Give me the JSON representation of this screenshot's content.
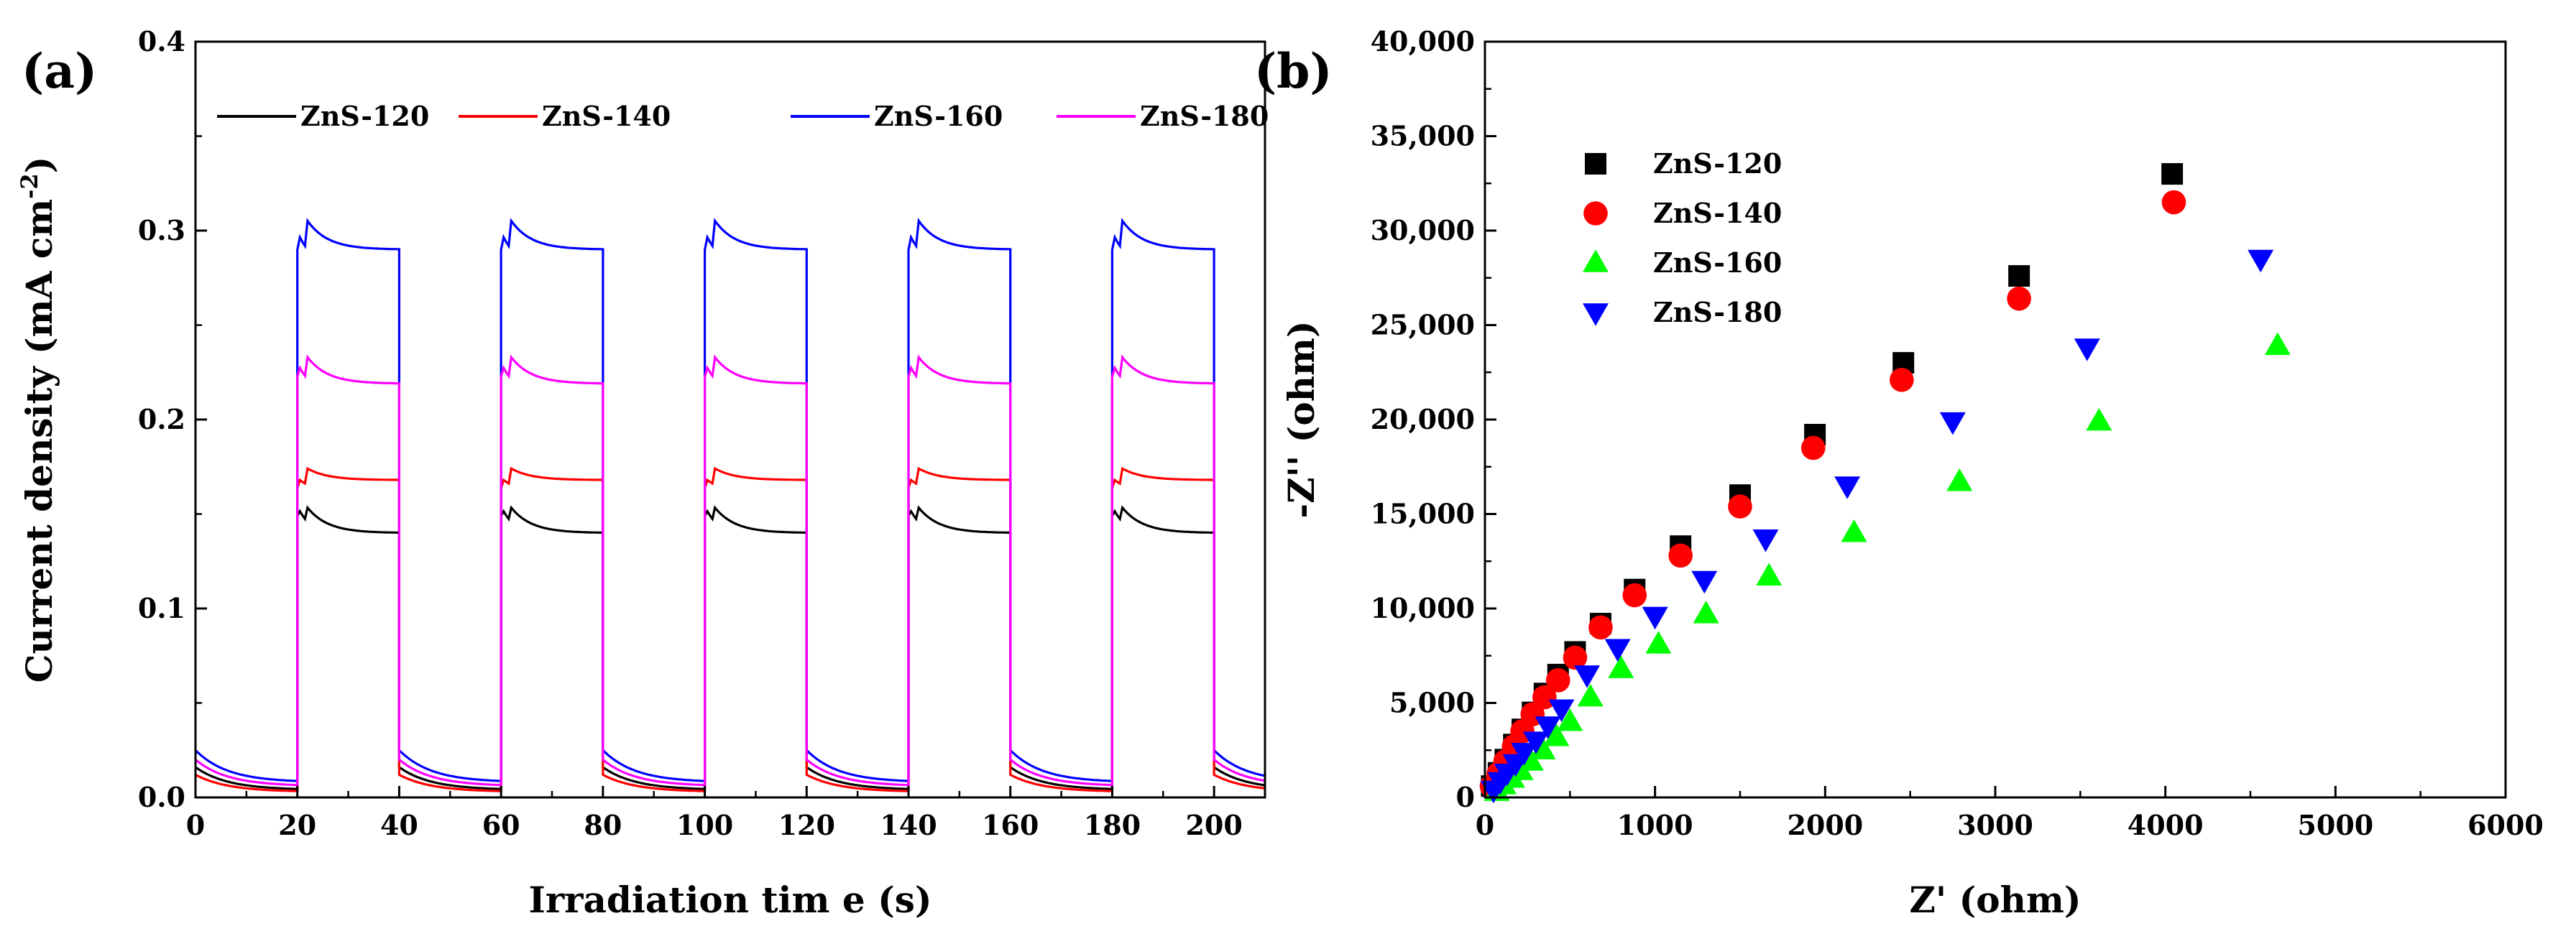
{
  "chart_data": [
    {
      "panel_label": "(a)",
      "type": "line",
      "xlabel": "Irradiation tim e (s)",
      "ylabel": "Current density (mA cm",
      "ylabel_sup": "-2",
      "ylabel_close": ")",
      "xlim": [
        0,
        210
      ],
      "ylim": [
        0,
        0.4
      ],
      "xticks": [
        0,
        20,
        40,
        60,
        80,
        100,
        120,
        140,
        160,
        180,
        200
      ],
      "xtick_labels": [
        "0",
        "20",
        "40",
        "60",
        "80",
        "100",
        "120",
        "140",
        "160",
        "180",
        "200"
      ],
      "yticks": [
        0.0,
        0.1,
        0.2,
        0.3,
        0.4
      ],
      "ytick_labels": [
        "0.0",
        "0.1",
        "0.2",
        "0.3",
        "0.4"
      ],
      "legend_position": "top",
      "light_on_intervals": [
        [
          20,
          40
        ],
        [
          60,
          80
        ],
        [
          100,
          120
        ],
        [
          140,
          160
        ],
        [
          180,
          200
        ]
      ],
      "series": [
        {
          "name": "ZnS-120",
          "color": "#000000",
          "dark_start": 0.016,
          "dark_end": 0.004,
          "on_peak": 0.162,
          "on_plateau": 0.14
        },
        {
          "name": "ZnS-140",
          "color": "#ff0000",
          "dark_start": 0.012,
          "dark_end": 0.003,
          "on_peak": 0.178,
          "on_plateau": 0.168
        },
        {
          "name": "ZnS-160",
          "color": "#0000ff",
          "dark_start": 0.025,
          "dark_end": 0.008,
          "on_peak": 0.315,
          "on_plateau": 0.29
        },
        {
          "name": "ZnS-180",
          "color": "#ff00ff",
          "dark_start": 0.02,
          "dark_end": 0.006,
          "on_peak": 0.242,
          "on_plateau": 0.219
        }
      ]
    },
    {
      "panel_label": "(b)",
      "type": "scatter",
      "xlabel": "Z' (ohm)",
      "ylabel": "-Z'' (ohm)",
      "xlim": [
        0,
        6000
      ],
      "ylim": [
        0,
        40000
      ],
      "xticks": [
        0,
        1000,
        2000,
        3000,
        4000,
        5000,
        6000
      ],
      "xtick_labels": [
        "0",
        "1000",
        "2000",
        "3000",
        "4000",
        "5000",
        "6000"
      ],
      "yticks": [
        0,
        5000,
        10000,
        15000,
        20000,
        25000,
        30000,
        35000,
        40000
      ],
      "ytick_labels": [
        "0",
        "5,000",
        "10,000",
        "15,000",
        "20,000",
        "25,000",
        "30,000",
        "35,000",
        "40,000"
      ],
      "legend_position": "top-left",
      "series": [
        {
          "name": "ZnS-120",
          "color": "#000000",
          "marker": "square",
          "x": [
            40,
            80,
            120,
            170,
            220,
            280,
            350,
            430,
            530,
            680,
            880,
            1150,
            1500,
            1940,
            2460,
            3140,
            4040
          ],
          "y": [
            600,
            1300,
            2000,
            2800,
            3600,
            4500,
            5500,
            6500,
            7700,
            9200,
            11000,
            13300,
            16000,
            19200,
            23000,
            27600,
            33000
          ]
        },
        {
          "name": "ZnS-140",
          "color": "#ff0000",
          "marker": "circle",
          "x": [
            40,
            80,
            120,
            170,
            220,
            280,
            350,
            430,
            530,
            680,
            880,
            1150,
            1500,
            1930,
            2450,
            3140,
            4050
          ],
          "y": [
            600,
            1250,
            1900,
            2700,
            3500,
            4400,
            5300,
            6200,
            7400,
            9000,
            10700,
            12800,
            15400,
            18500,
            22100,
            26400,
            31500
          ]
        },
        {
          "name": "ZnS-160",
          "color": "#00ff00",
          "marker": "triangle-up",
          "x": [
            70,
            110,
            160,
            210,
            270,
            340,
            420,
            500,
            620,
            800,
            1020,
            1300,
            1670,
            2170,
            2790,
            3610,
            4660
          ],
          "y": [
            300,
            650,
            1000,
            1400,
            1900,
            2500,
            3200,
            4000,
            5300,
            6800,
            8100,
            9700,
            11700,
            14000,
            16700,
            19900,
            23900
          ]
        },
        {
          "name": "ZnS-180",
          "color": "#0000ff",
          "marker": "triangle-down",
          "x": [
            50,
            90,
            130,
            180,
            230,
            300,
            370,
            450,
            600,
            780,
            1000,
            1290,
            1650,
            2130,
            2750,
            3540,
            4560
          ],
          "y": [
            400,
            850,
            1300,
            1800,
            2400,
            3000,
            3800,
            4700,
            6500,
            7900,
            9600,
            11500,
            13700,
            16500,
            19900,
            23800,
            28500
          ]
        }
      ]
    }
  ]
}
